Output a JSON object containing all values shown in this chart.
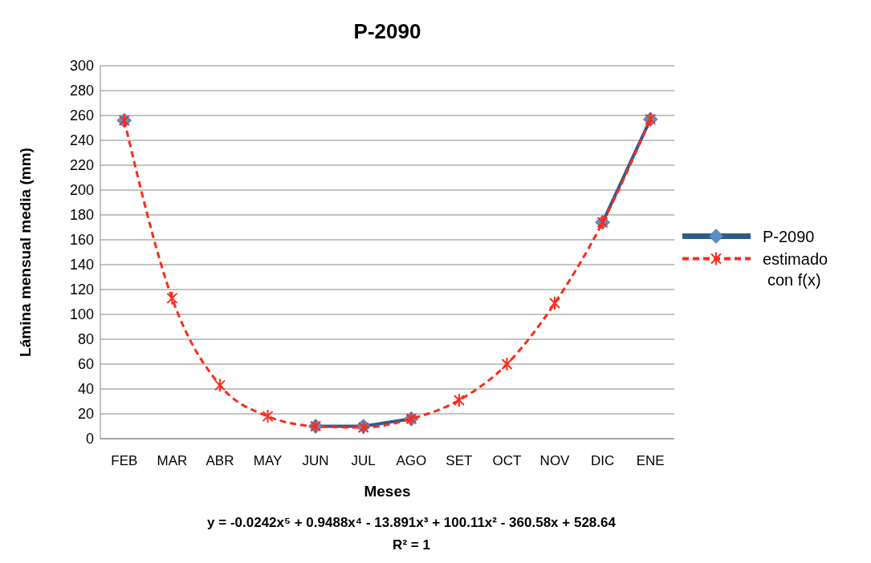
{
  "chart_data": {
    "type": "line",
    "title": "P-2090",
    "xlabel": "Meses",
    "ylabel": "Lámina mensual media (mm)",
    "categories": [
      "FEB",
      "MAR",
      "ABR",
      "MAY",
      "JUN",
      "JUL",
      "AGO",
      "SET",
      "OCT",
      "NOV",
      "DIC",
      "ENE"
    ],
    "series": [
      {
        "name": "P-2090",
        "color": "#2e5c8a",
        "marker": "diamond",
        "line_style": "solid",
        "values": [
          256,
          null,
          null,
          null,
          10,
          10,
          16,
          null,
          null,
          null,
          174,
          257
        ]
      },
      {
        "name": "estimado con f(x)",
        "color": "#ff2a1a",
        "marker": "cross",
        "line_style": "dashed",
        "values": [
          256,
          113,
          43,
          18,
          10,
          9,
          16,
          31,
          60,
          109,
          174,
          257
        ]
      }
    ],
    "ylim": [
      0,
      300
    ],
    "yticks": [
      0,
      20,
      40,
      60,
      80,
      100,
      120,
      140,
      160,
      180,
      200,
      220,
      240,
      260,
      280,
      300
    ],
    "grid": "y",
    "legend": "right",
    "annotations": [
      "y = -0.0242x⁵ + 0.9488x⁴ - 13.891x³ + 100.11x² - 360.58x + 528.64",
      "R² = 1"
    ]
  }
}
